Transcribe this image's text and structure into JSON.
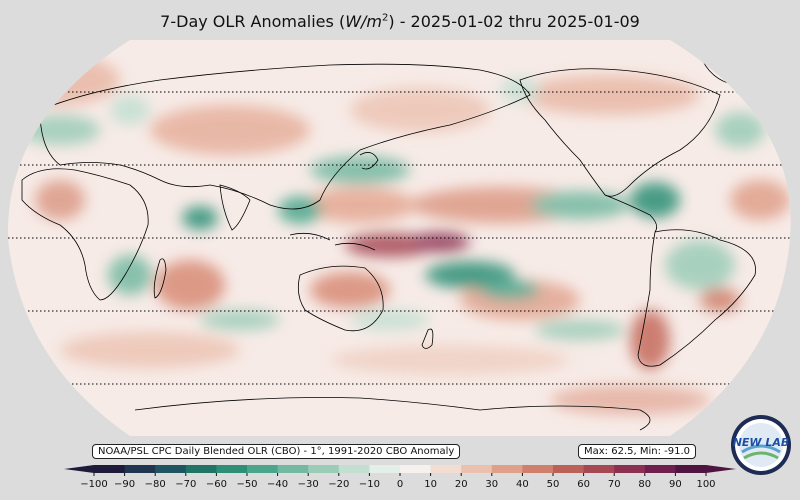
{
  "title": {
    "prefix": "7-Day OLR Anomalies (",
    "unit_base": "W/m",
    "unit_exp": "2",
    "suffix": ") - 2025-01-02 thru 2025-01-09"
  },
  "source_label": "NOAA/PSL CPC Daily Blended OLR (CBO) - 1°, 1991-2020 CBO Anomaly",
  "stats_label": "Max: 62.5,  Min: -91.0",
  "logo_text": "NEW LAB",
  "colorbar": {
    "ticks": [
      "−100",
      "−90",
      "−80",
      "−70",
      "−60",
      "−50",
      "−40",
      "−30",
      "−20",
      "−10",
      "0",
      "10",
      "20",
      "30",
      "40",
      "50",
      "60",
      "70",
      "80",
      "90",
      "100"
    ],
    "colors": [
      "#1e1b3a",
      "#1f3550",
      "#1f5560",
      "#1f7466",
      "#2c8f76",
      "#4aa58b",
      "#73b9a1",
      "#9bccb8",
      "#c2dfd1",
      "#e4efe9",
      "#f6f0ee",
      "#f3dcd2",
      "#ebc0ae",
      "#df9f89",
      "#cf7f6b",
      "#bd6057",
      "#a64752",
      "#8c3052",
      "#6f1f4e",
      "#4f1440"
    ]
  },
  "colors": {
    "background": "#dcdcdc",
    "map_base": "#f7ebe7",
    "positive": "#cf7f6b",
    "negative": "#2c8f76"
  }
}
